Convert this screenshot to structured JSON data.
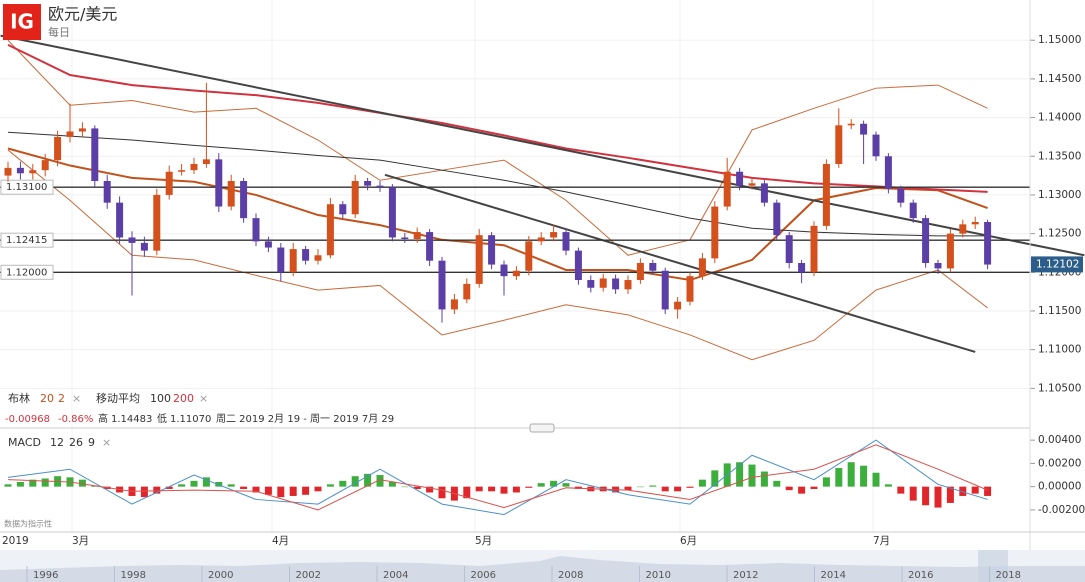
{
  "header": {
    "logo": "IG",
    "title": "欧元/美元",
    "interval": "每日"
  },
  "legend": {
    "bollinger": "布林",
    "bb_period": "20",
    "bb_dev": "2",
    "bb_close": "×",
    "ma": "移动平均",
    "ma_fast": "100",
    "ma_slow": "200",
    "ma_close": "×",
    "change": "-0.00968",
    "change_pct": "-0.86%",
    "high_label": "高",
    "high": "1.14483",
    "low_label": "低",
    "low": "1.11070",
    "range": "周二 2019 2月 19 - 周一 2019 7月 29",
    "macd": "MACD",
    "macd_fast": "12",
    "macd_slow": "26",
    "macd_signal": "9",
    "macd_close": "×",
    "disclaimer": "数据为指示性"
  },
  "time_axis": {
    "labels": [
      "2019",
      "3月",
      "4月",
      "5月",
      "6月",
      "7月"
    ],
    "navigator_years": [
      "1996",
      "1998",
      "2000",
      "2002",
      "2004",
      "2006",
      "2008",
      "2010",
      "2012",
      "2014",
      "2016",
      "2018"
    ]
  },
  "chart_data": [
    {
      "type": "candlestick",
      "open": [
        1.1325,
        1.1335,
        1.1328,
        1.1332,
        1.1345,
        1.1375,
        1.1382,
        1.1386,
        1.1318,
        1.129,
        1.1245,
        1.1238,
        1.1228,
        1.13,
        1.133,
        1.1332,
        1.134,
        1.1346,
        1.1285,
        1.1318,
        1.127,
        1.124,
        1.1232,
        1.12,
        1.123,
        1.1215,
        1.1222,
        1.1288,
        1.1275,
        1.1318,
        1.1312,
        1.131,
        1.1245,
        1.1243,
        1.1252,
        1.1215,
        1.1152,
        1.1165,
        1.1185,
        1.1248,
        1.121,
        1.1195,
        1.1202,
        1.124,
        1.1245,
        1.1252,
        1.1228,
        1.119,
        1.118,
        1.1192,
        1.1178,
        1.119,
        1.1212,
        1.1202,
        1.1152,
        1.1162,
        1.1195,
        1.1218,
        1.1285,
        1.133,
        1.1312,
        1.1315,
        1.129,
        1.1248,
        1.1212,
        1.12,
        1.126,
        1.134,
        1.139,
        1.1392,
        1.1378,
        1.135,
        1.1308,
        1.129,
        1.127,
        1.1212,
        1.1205,
        1.125,
        1.1262,
        1.1265
      ],
      "high": [
        1.1343,
        1.1343,
        1.134,
        1.1353,
        1.1383,
        1.1418,
        1.1394,
        1.139,
        1.1326,
        1.1298,
        1.1253,
        1.1246,
        1.1308,
        1.1338,
        1.134,
        1.1348,
        1.1445,
        1.1354,
        1.1326,
        1.1322,
        1.1276,
        1.1246,
        1.1238,
        1.1238,
        1.1234,
        1.123,
        1.1296,
        1.1292,
        1.1326,
        1.1322,
        1.1318,
        1.1314,
        1.1251,
        1.1258,
        1.1256,
        1.122,
        1.1172,
        1.1192,
        1.1256,
        1.1252,
        1.1215,
        1.1208,
        1.1247,
        1.1252,
        1.1262,
        1.1256,
        1.1232,
        1.1196,
        1.1198,
        1.1197,
        1.1196,
        1.1218,
        1.1216,
        1.1206,
        1.1168,
        1.12,
        1.1225,
        1.1292,
        1.1348,
        1.1335,
        1.1322,
        1.1319,
        1.1294,
        1.1252,
        1.1216,
        1.1266,
        1.1346,
        1.1412,
        1.1398,
        1.1396,
        1.1382,
        1.1354,
        1.1312,
        1.1294,
        1.1274,
        1.1216,
        1.1256,
        1.1268,
        1.1272,
        1.1268
      ],
      "low": [
        1.1317,
        1.132,
        1.132,
        1.1324,
        1.1337,
        1.1368,
        1.1375,
        1.131,
        1.1282,
        1.1237,
        1.117,
        1.122,
        1.1222,
        1.1294,
        1.1325,
        1.1327,
        1.1335,
        1.1278,
        1.128,
        1.1264,
        1.1234,
        1.1226,
        1.1188,
        1.1195,
        1.121,
        1.121,
        1.1218,
        1.127,
        1.127,
        1.1306,
        1.1304,
        1.124,
        1.1238,
        1.1238,
        1.1208,
        1.1135,
        1.1146,
        1.116,
        1.118,
        1.1204,
        1.117,
        1.119,
        1.1196,
        1.1235,
        1.124,
        1.1222,
        1.1184,
        1.1174,
        1.1175,
        1.1172,
        1.1172,
        1.1185,
        1.1197,
        1.1146,
        1.114,
        1.1157,
        1.119,
        1.1212,
        1.128,
        1.1306,
        1.1307,
        1.1285,
        1.1242,
        1.1205,
        1.1186,
        1.1195,
        1.1255,
        1.1335,
        1.1385,
        1.134,
        1.1344,
        1.1302,
        1.1284,
        1.1264,
        1.1206,
        1.1198,
        1.12,
        1.1245,
        1.1256,
        1.1204
      ],
      "close": [
        1.1335,
        1.1328,
        1.1332,
        1.1345,
        1.1375,
        1.1382,
        1.1386,
        1.1318,
        1.129,
        1.1245,
        1.1238,
        1.1228,
        1.13,
        1.133,
        1.1332,
        1.134,
        1.1346,
        1.1285,
        1.1318,
        1.127,
        1.124,
        1.1232,
        1.12,
        1.123,
        1.1215,
        1.1222,
        1.1288,
        1.1275,
        1.1318,
        1.1312,
        1.131,
        1.1245,
        1.1243,
        1.1252,
        1.1215,
        1.1152,
        1.1165,
        1.1185,
        1.1248,
        1.121,
        1.1195,
        1.1202,
        1.124,
        1.1245,
        1.1252,
        1.1228,
        1.119,
        1.118,
        1.1192,
        1.1178,
        1.119,
        1.1212,
        1.1202,
        1.1152,
        1.1162,
        1.1195,
        1.1218,
        1.1285,
        1.133,
        1.1312,
        1.1315,
        1.129,
        1.1248,
        1.1212,
        1.12,
        1.126,
        1.134,
        1.139,
        1.1392,
        1.1378,
        1.135,
        1.1308,
        1.129,
        1.127,
        1.1212,
        1.1205,
        1.125,
        1.1262,
        1.1265,
        1.121
      ],
      "colors": {
        "up": "#d4501c",
        "down": "#5b3fa6"
      },
      "ylim": [
        1.1,
        1.1552
      ],
      "yticks": [
        {
          "value": 1.105,
          "label": "1.10500"
        },
        {
          "value": 1.11,
          "label": "1.11000"
        },
        {
          "value": 1.115,
          "label": "1.11500"
        },
        {
          "value": 1.12,
          "label": "1.12000"
        },
        {
          "value": 1.125,
          "label": "1.12500"
        },
        {
          "value": 1.13,
          "label": "1.13000"
        },
        {
          "value": 1.135,
          "label": "1.13500"
        },
        {
          "value": 1.14,
          "label": "1.14000"
        },
        {
          "value": 1.145,
          "label": "1.14500"
        },
        {
          "value": 1.15,
          "label": "1.15000"
        }
      ],
      "grid": true,
      "overlays": {
        "x": [
          0,
          5,
          10,
          15,
          20,
          25,
          30,
          35,
          40,
          45,
          50,
          55,
          60,
          65,
          70,
          75,
          79
        ],
        "series": [
          {
            "color": "#c96a3a",
            "width": 1,
            "values": [
              1.15,
              1.1416,
              1.1422,
              1.1407,
              1.1412,
              1.1371,
              1.1319,
              1.1332,
              1.1345,
              1.1293,
              1.1222,
              1.1242,
              1.1384,
              1.1412,
              1.1438,
              1.1442,
              1.1412
            ]
          },
          {
            "color": "#c96a3a",
            "width": 1,
            "values": [
              1.1358,
              1.1293,
              1.1222,
              1.1216,
              1.1196,
              1.1177,
              1.1183,
              1.1119,
              1.1138,
              1.1158,
              1.1145,
              1.1119,
              1.1087,
              1.1112,
              1.1177,
              1.1203,
              1.1154
            ]
          },
          {
            "color": "#c2521c",
            "width": 2,
            "values": [
              1.136,
              1.1338,
              1.1322,
              1.1317,
              1.13,
              1.1274,
              1.1261,
              1.1242,
              1.1235,
              1.1203,
              1.1203,
              1.119,
              1.1216,
              1.1293,
              1.1309,
              1.1306,
              1.1283
            ]
          },
          {
            "color": "#333333",
            "width": 1,
            "values": [
              1.1381,
              1.1376,
              1.1371,
              1.1364,
              1.1358,
              1.1351,
              1.1345,
              1.1332,
              1.1319,
              1.1304,
              1.1287,
              1.127,
              1.1257,
              1.1252,
              1.1249,
              1.1247,
              1.1247
            ]
          },
          {
            "color": "#d0333f",
            "width": 2,
            "values": [
              1.1494,
              1.1455,
              1.1442,
              1.1435,
              1.1429,
              1.1419,
              1.1406,
              1.1393,
              1.1377,
              1.136,
              1.1348,
              1.1335,
              1.1322,
              1.1315,
              1.1311,
              1.1307,
              1.1304
            ]
          }
        ]
      },
      "trendlines": [
        {
          "x": [
            -0.6,
            86.8
          ],
          "values": [
            1.1506,
            1.1222
          ]
        },
        {
          "x": [
            30.4,
            78
          ],
          "values": [
            1.1326,
            1.1097
          ]
        }
      ],
      "levels": [
        {
          "value": 1.131,
          "label": "1.13100"
        },
        {
          "value": 1.12415,
          "label": "1.12415"
        },
        {
          "value": 1.12,
          "label": "1.12000"
        }
      ],
      "last": {
        "value": 1.12102,
        "label": "1.12102"
      }
    },
    {
      "type": "macd",
      "histogram": [
        0.0002,
        0.0004,
        0.0006,
        0.0007,
        0.0009,
        0.0008,
        0.0006,
        0.0001,
        -0.0002,
        -0.0005,
        -0.0008,
        -0.0009,
        -0.0006,
        -0.0002,
        0.0002,
        0.0005,
        0.0008,
        0.0004,
        0.0002,
        -0.0002,
        -0.0005,
        -0.0007,
        -0.0009,
        -0.0008,
        -0.0007,
        -0.0004,
        0.0002,
        0.0005,
        0.0009,
        0.0011,
        0.001,
        0.0004,
        0.0,
        -0.0002,
        -0.0005,
        -0.001,
        -0.0012,
        -0.001,
        -0.0004,
        -0.0004,
        -0.0006,
        -0.0005,
        -0.0001,
        0.0003,
        0.0005,
        0.0003,
        -0.0002,
        -0.0004,
        -0.0004,
        -0.0005,
        -0.0003,
        0.0,
        0.0001,
        -0.0004,
        -0.0004,
        -0.0001,
        0.0006,
        0.0014,
        0.002,
        0.0021,
        0.0019,
        0.0013,
        0.0005,
        -0.0003,
        -0.0006,
        -0.0002,
        0.0008,
        0.0016,
        0.0021,
        0.0018,
        0.0012,
        0.0002,
        -0.0006,
        -0.0012,
        -0.0016,
        -0.0018,
        -0.0014,
        -0.0008,
        -0.0006,
        -0.0008
      ],
      "colors": {
        "positive": "#3cae3c",
        "negative": "#e0262a"
      },
      "x": [
        0,
        5,
        10,
        15,
        20,
        25,
        30,
        35,
        40,
        45,
        50,
        55,
        60,
        65,
        70,
        75,
        79
      ],
      "series": [
        {
          "color": "#4a90c8",
          "values": [
            0.0008,
            0.0015,
            -0.0015,
            0.001,
            -0.0011,
            -0.0015,
            0.0015,
            -0.0015,
            -0.0024,
            0.0006,
            -0.0007,
            -0.0015,
            0.0027,
            0.0006,
            0.004,
            0.0002,
            -0.0011
          ]
        },
        {
          "color": "#d9534f",
          "values": [
            0.0006,
            0.0004,
            -0.0004,
            -0.0003,
            -0.0004,
            -0.002,
            0.0006,
            -0.0003,
            -0.0018,
            -0.0001,
            -0.0003,
            -0.0011,
            0.0008,
            0.0015,
            0.0036,
            0.0015,
            -0.0003
          ]
        }
      ],
      "ylim": [
        -0.0039,
        0.0047
      ],
      "yticks": [
        {
          "value": -0.002,
          "label": "-0.00200"
        },
        {
          "value": 0,
          "label": "0.00000"
        },
        {
          "value": 0.002,
          "label": "0.00200"
        },
        {
          "value": 0.004,
          "label": "0.00400"
        }
      ]
    }
  ]
}
